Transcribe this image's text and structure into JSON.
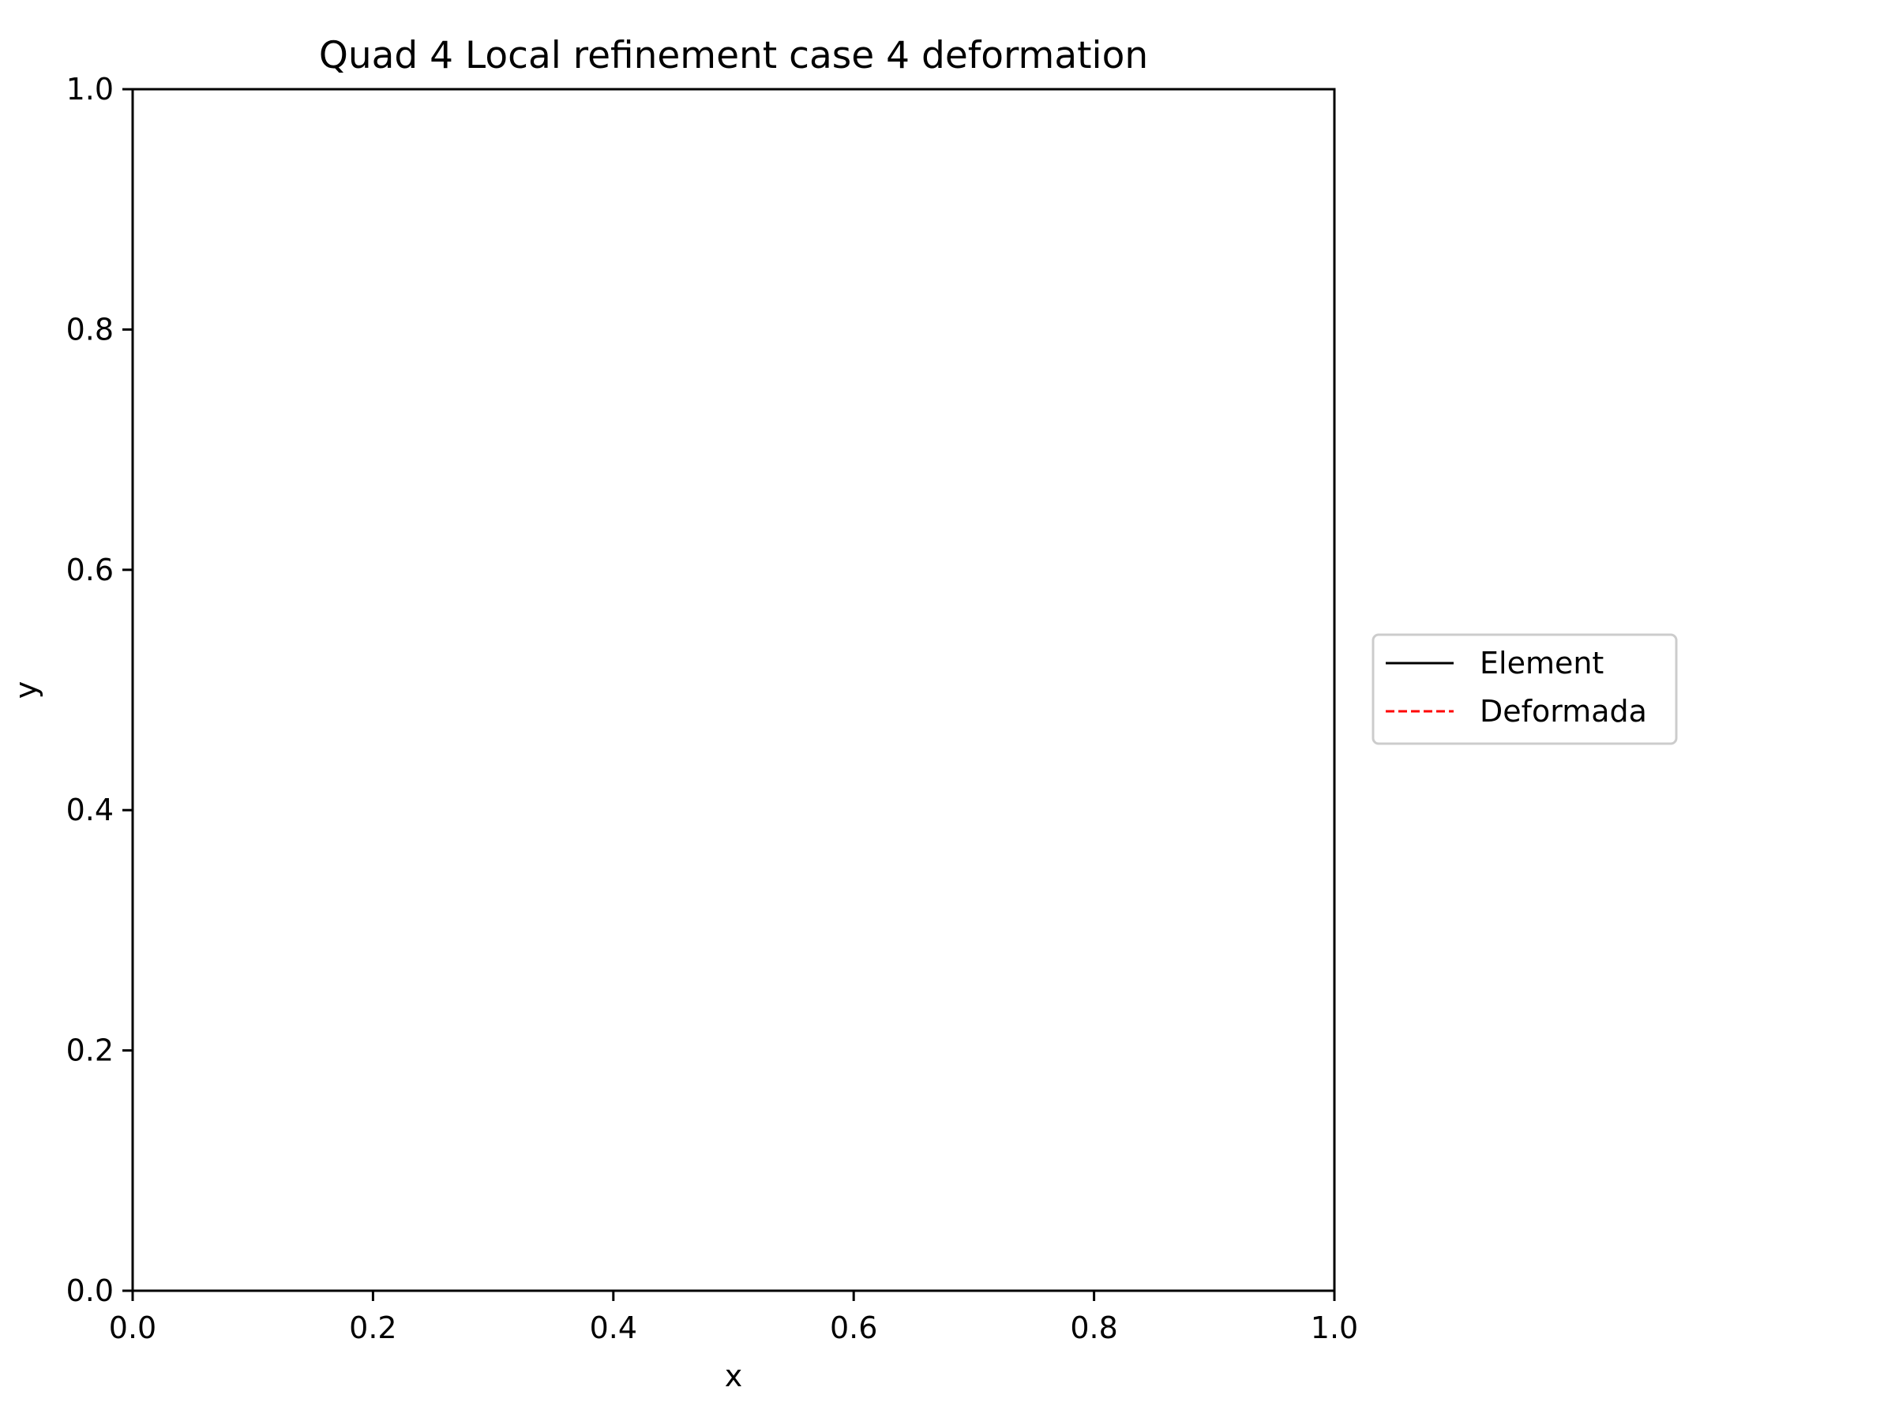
{
  "chart_data": {
    "type": "line",
    "title": "Quad 4 Local refinement case 4 deformation",
    "xlabel": "x",
    "ylabel": "y",
    "xlim": [
      0,
      1
    ],
    "ylim": [
      0,
      1
    ],
    "xticks": [
      "0.0",
      "0.2",
      "0.4",
      "0.6",
      "0.8",
      "1.0"
    ],
    "yticks": [
      "0.0",
      "0.2",
      "0.4",
      "0.6",
      "0.8",
      "1.0"
    ],
    "grid": false,
    "legend_position": "outside-right",
    "series": [
      {
        "name": "Element",
        "color": "#000000",
        "linestyle": "solid",
        "x": [],
        "y": []
      },
      {
        "name": "Deformada",
        "color": "#ff0000",
        "linestyle": "dashed",
        "x": [],
        "y": []
      }
    ]
  }
}
